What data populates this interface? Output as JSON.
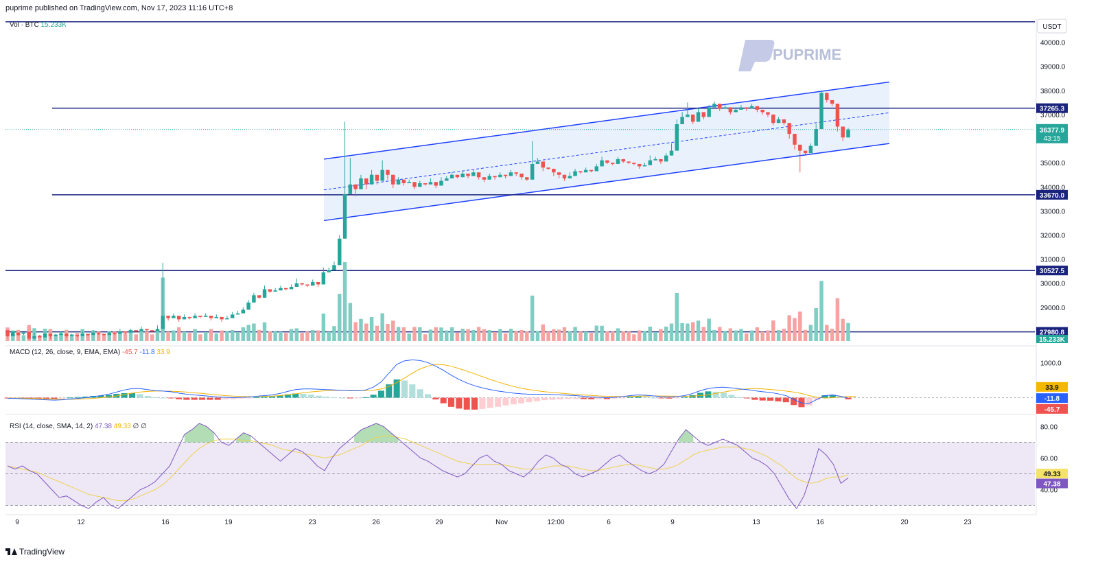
{
  "header": {
    "published": "puprime published on TradingView.com, Nov 17, 2023 11:16 UTC+8"
  },
  "footer": {
    "brand": "TradingView"
  },
  "watermark": {
    "text": "PUPRIME",
    "color": "#9aa6d6"
  },
  "colors": {
    "up": "#26a69a",
    "down": "#ef5350",
    "level": "#1a237e",
    "channel": "#1e40ff",
    "channel_fill": "#e3eefc",
    "volume_up": "#7fcdc3",
    "volume_down": "#f4a3a1",
    "macd": "#2962ff",
    "signal": "#f2b300",
    "rsi": "#7e57c2",
    "rsi_ma": "#f0d34d",
    "rsi_band": "#ede7f6"
  },
  "chart_data": {
    "type": "candlestick",
    "symbol": "BTC",
    "currency": "USDT",
    "price_axis": {
      "ticks": [
        "40000.0",
        "39000.0",
        "38000.0",
        "37000.0",
        "35000.0",
        "34000.0",
        "33000.0",
        "32000.0",
        "31000.0",
        "30000.0",
        "29000.0",
        "28000.0"
      ],
      "ylim": [
        27600,
        40900
      ]
    },
    "time_axis": {
      "labels": [
        "9",
        "12",
        "16",
        "19",
        "23",
        "26",
        "29",
        "Nov",
        "12:00",
        "6",
        "9",
        "13",
        "16",
        "20",
        "23"
      ]
    },
    "levels": [
      {
        "price": 40850,
        "label": ""
      },
      {
        "price": 37265.3,
        "label": "37265.3"
      },
      {
        "price": 33670.0,
        "label": "33670.0"
      },
      {
        "price": 30527.5,
        "label": "30527.5"
      },
      {
        "price": 27980.8,
        "label": "27980.8"
      }
    ],
    "last_price": {
      "value": "36377.9",
      "countdown": "43:15"
    },
    "channel": {
      "upper": [
        [
          35150,
          38350
        ]
      ],
      "lower": [
        [
          32600,
          35800
        ]
      ]
    },
    "candles_start": 27950,
    "candles": [
      [
        28050,
        27800,
        27750
      ],
      [
        27800,
        28000,
        27900
      ],
      [
        27950,
        27850,
        27800
      ],
      [
        27900,
        27950,
        27850
      ],
      [
        27980,
        27700,
        27650
      ],
      [
        27700,
        27800,
        27950
      ],
      [
        27800,
        27750,
        27850
      ],
      [
        27750,
        27900,
        28000
      ],
      [
        27900,
        27800,
        27700
      ],
      [
        27800,
        27850,
        27900
      ],
      [
        27850,
        27900,
        28000
      ],
      [
        27900,
        27800,
        27750
      ],
      [
        27800,
        27850,
        27900
      ],
      [
        27850,
        27800,
        27750
      ],
      [
        27800,
        27900,
        28000
      ],
      [
        27900,
        27850,
        27800
      ],
      [
        27850,
        27950,
        28050
      ],
      [
        27950,
        27900,
        27850
      ],
      [
        27900,
        27850,
        27800
      ],
      [
        27850,
        27950,
        28000
      ],
      [
        27950,
        27900,
        27850
      ],
      [
        27900,
        28000,
        28100
      ],
      [
        28000,
        27950,
        27900
      ],
      [
        27950,
        28050,
        28100
      ],
      [
        28050,
        28000,
        27950
      ],
      [
        28000,
        28100,
        28200
      ],
      [
        28100,
        28050,
        28000
      ],
      [
        28050,
        28000,
        27950
      ],
      [
        28000,
        28100,
        28250
      ],
      [
        28100,
        28650,
        30850
      ],
      [
        28650,
        28550,
        28450
      ],
      [
        28550,
        28650,
        28750
      ],
      [
        28650,
        28500,
        28400
      ],
      [
        28500,
        28600,
        28700
      ],
      [
        28600,
        28550,
        28500
      ],
      [
        28550,
        28650,
        28750
      ],
      [
        28650,
        28600,
        28550
      ],
      [
        28600,
        28650,
        28750
      ],
      [
        28650,
        28550,
        28450
      ],
      [
        28550,
        28600,
        28700
      ],
      [
        28600,
        28500,
        28400
      ],
      [
        28500,
        28550,
        28650
      ],
      [
        28550,
        28700,
        28800
      ],
      [
        28700,
        28750,
        28850
      ],
      [
        28750,
        28900,
        29000
      ],
      [
        28900,
        29200,
        29300
      ],
      [
        29200,
        29500,
        29600
      ],
      [
        29500,
        29400,
        29350
      ],
      [
        29400,
        29750,
        29900
      ],
      [
        29750,
        29650,
        29600
      ],
      [
        29650,
        29700,
        29800
      ],
      [
        29700,
        29800,
        29900
      ],
      [
        29800,
        29750,
        29700
      ],
      [
        29750,
        29850,
        29950
      ],
      [
        29850,
        30000,
        30200
      ],
      [
        30000,
        29950,
        29900
      ],
      [
        29950,
        29900,
        29850
      ],
      [
        29900,
        30050,
        30150
      ],
      [
        30050,
        29950,
        29850
      ],
      [
        29950,
        30450,
        30650
      ],
      [
        30450,
        30550,
        30650
      ],
      [
        30550,
        30750,
        30900
      ],
      [
        30750,
        31850,
        32000
      ],
      [
        31850,
        33700,
        36700
      ],
      [
        33700,
        34100,
        35200
      ],
      [
        34100,
        33900,
        33600
      ],
      [
        33900,
        34350,
        34500
      ],
      [
        34350,
        34100,
        33900
      ],
      [
        34100,
        34500,
        34700
      ],
      [
        34500,
        34250,
        34100
      ],
      [
        34250,
        34700,
        35100
      ],
      [
        34700,
        34500,
        34300
      ],
      [
        34500,
        34100,
        33950
      ],
      [
        34100,
        34300,
        34400
      ],
      [
        34300,
        34150,
        34050
      ],
      [
        34150,
        34200,
        34300
      ],
      [
        34200,
        34000,
        33900
      ],
      [
        34000,
        34150,
        34250
      ],
      [
        34150,
        34100,
        34050
      ],
      [
        34100,
        34200,
        34350
      ],
      [
        34200,
        34050,
        33950
      ],
      [
        34050,
        34250,
        34400
      ],
      [
        34250,
        34350,
        34450
      ],
      [
        34350,
        34500,
        34600
      ],
      [
        34500,
        34400,
        34350
      ],
      [
        34400,
        34550,
        34650
      ],
      [
        34550,
        34450,
        34350
      ],
      [
        34450,
        34600,
        34700
      ],
      [
        34600,
        34400,
        34300
      ],
      [
        34400,
        34300,
        34200
      ],
      [
        34300,
        34450,
        34550
      ],
      [
        34450,
        34400,
        34300
      ],
      [
        34400,
        34500,
        34600
      ],
      [
        34500,
        34450,
        34350
      ],
      [
        34450,
        34600,
        34700
      ],
      [
        34600,
        34550,
        34450
      ],
      [
        34550,
        34400,
        34300
      ],
      [
        34400,
        34300,
        34250
      ],
      [
        34300,
        34950,
        35900
      ],
      [
        34950,
        35050,
        35200
      ],
      [
        35050,
        34800,
        34650
      ],
      [
        34800,
        34750,
        34700
      ],
      [
        34750,
        34600,
        34450
      ],
      [
        34600,
        34500,
        34350
      ],
      [
        34500,
        34350,
        34250
      ],
      [
        34350,
        34450,
        34600
      ],
      [
        34450,
        34650,
        34750
      ],
      [
        34650,
        34600,
        34550
      ],
      [
        34600,
        34700,
        34800
      ],
      [
        34700,
        34650,
        34600
      ],
      [
        34650,
        34850,
        34950
      ],
      [
        34850,
        35100,
        35250
      ],
      [
        35100,
        35000,
        34950
      ],
      [
        35000,
        34950,
        34900
      ],
      [
        34950,
        35150,
        35250
      ],
      [
        35150,
        35050,
        35000
      ],
      [
        35050,
        35000,
        34950
      ],
      [
        35000,
        34950,
        34900
      ],
      [
        34950,
        34850,
        34750
      ],
      [
        34850,
        34900,
        35000
      ],
      [
        34900,
        35100,
        35300
      ],
      [
        35100,
        35150,
        35250
      ],
      [
        35150,
        35050,
        34950
      ],
      [
        35050,
        35300,
        35400
      ],
      [
        35300,
        35500,
        35800
      ],
      [
        35500,
        36600,
        36800
      ],
      [
        36600,
        36900,
        37100
      ],
      [
        36900,
        37000,
        37500
      ],
      [
        37000,
        36700,
        36600
      ],
      [
        36700,
        37100,
        37250
      ],
      [
        37100,
        36900,
        36800
      ],
      [
        36900,
        37300,
        37400
      ],
      [
        37300,
        37450,
        37550
      ],
      [
        37450,
        37250,
        37150
      ],
      [
        37250,
        37300,
        37400
      ],
      [
        37300,
        37100,
        37000
      ],
      [
        37100,
        37200,
        37300
      ],
      [
        37200,
        37300,
        37400
      ],
      [
        37300,
        37250,
        37150
      ],
      [
        37250,
        37350,
        37450
      ],
      [
        37350,
        37200,
        37100
      ],
      [
        37200,
        37100,
        37000
      ],
      [
        37100,
        37000,
        36900
      ],
      [
        37000,
        36650,
        36550
      ],
      [
        36650,
        36800,
        36900
      ],
      [
        36800,
        36650,
        36550
      ],
      [
        36650,
        36200,
        36000
      ],
      [
        36200,
        35750,
        35550
      ],
      [
        35750,
        35500,
        34600
      ],
      [
        35500,
        35400,
        35350
      ],
      [
        35400,
        35700,
        35800
      ],
      [
        35700,
        36400,
        36600
      ],
      [
        36400,
        37900,
        38000
      ],
      [
        37900,
        37600,
        37500
      ],
      [
        37600,
        37450,
        37350
      ],
      [
        37450,
        36500,
        36300
      ],
      [
        36500,
        36050,
        35900
      ],
      [
        36050,
        36377.9,
        36450
      ]
    ],
    "volume": {
      "label": "Vol · BTC",
      "value": "15.233K"
    },
    "macd": {
      "label": "MACD (12, 26, close, 9, EMA, EMA)",
      "histogram": "-45.7",
      "macd": "-11.8",
      "signal": "33.9",
      "ticks": [
        "1000.0"
      ],
      "ylim": [
        -400,
        1400
      ],
      "macd_line": [
        -20,
        -20,
        -30,
        -40,
        -50,
        -60,
        -70,
        -60,
        -40,
        -20,
        0,
        30,
        60,
        100,
        160,
        220,
        260,
        260,
        230,
        200,
        190,
        170,
        130,
        100,
        80,
        60,
        40,
        20,
        10,
        0,
        10,
        20,
        40,
        60,
        80,
        120,
        180,
        230,
        250,
        250,
        240,
        230,
        220,
        210,
        200,
        200,
        220,
        300,
        450,
        700,
        950,
        1050,
        1080,
        1060,
        1000,
        900,
        780,
        640,
        520,
        420,
        340,
        280,
        230,
        190,
        160,
        130,
        110,
        100,
        100,
        100,
        90,
        80,
        70,
        60,
        40,
        20,
        10,
        0,
        10,
        30,
        60,
        80,
        70,
        50,
        30,
        20,
        30,
        60,
        120,
        200,
        260,
        290,
        300,
        280,
        250,
        230,
        200,
        170,
        150,
        110,
        60,
        -50,
        -150,
        -160,
        -50,
        60,
        80,
        40,
        -11.8
      ],
      "signal_line": [
        -10,
        -12,
        -15,
        -20,
        -25,
        -32,
        -40,
        -45,
        -45,
        -40,
        -30,
        -20,
        0,
        20,
        50,
        90,
        130,
        160,
        180,
        190,
        190,
        185,
        175,
        160,
        140,
        120,
        100,
        80,
        60,
        45,
        35,
        30,
        30,
        35,
        45,
        60,
        85,
        110,
        140,
        165,
        185,
        200,
        210,
        210,
        210,
        205,
        205,
        215,
        250,
        320,
        430,
        560,
        700,
        820,
        900,
        950,
        940,
        900,
        830,
        760,
        680,
        600,
        520,
        450,
        380,
        320,
        270,
        230,
        200,
        170,
        150,
        130,
        110,
        95,
        80,
        65,
        50,
        40,
        35,
        32,
        35,
        42,
        48,
        50,
        48,
        45,
        42,
        40,
        45,
        60,
        80,
        120,
        160,
        200,
        230,
        250,
        260,
        250,
        235,
        215,
        190,
        160,
        120,
        60,
        10,
        -10,
        0,
        20,
        35,
        33.9
      ]
    },
    "rsi": {
      "label": "RSI (14, close, SMA, 14, 2)",
      "value": "47.38",
      "ma": "49.33",
      "extra": "∅ ∅",
      "ticks": [
        "80.00",
        "60.00",
        "40.00"
      ],
      "ylim": [
        25,
        85
      ],
      "upper": 70,
      "lower": 30,
      "rsi_line": [
        55,
        53,
        55,
        52,
        50,
        45,
        40,
        35,
        36,
        33,
        30,
        28,
        32,
        35,
        30,
        28,
        32,
        36,
        40,
        42,
        45,
        50,
        55,
        65,
        75,
        78,
        82,
        80,
        76,
        70,
        68,
        72,
        76,
        74,
        70,
        66,
        62,
        58,
        62,
        66,
        64,
        60,
        55,
        52,
        60,
        66,
        70,
        74,
        78,
        80,
        82,
        80,
        76,
        72,
        68,
        64,
        60,
        58,
        55,
        52,
        50,
        48,
        50,
        55,
        60,
        62,
        58,
        56,
        52,
        50,
        48,
        52,
        58,
        62,
        60,
        56,
        54,
        50,
        48,
        50,
        52,
        56,
        60,
        62,
        58,
        55,
        52,
        50,
        52,
        56,
        64,
        72,
        78,
        74,
        70,
        68,
        70,
        72,
        70,
        68,
        64,
        60,
        58,
        55,
        50,
        42,
        34,
        28,
        36,
        50,
        66,
        62,
        56,
        44,
        47.38
      ],
      "ma_line": [
        55,
        54,
        53,
        52,
        51,
        49,
        47,
        45,
        43,
        41,
        39,
        37,
        36,
        35,
        34,
        33,
        33,
        34,
        36,
        38,
        40,
        43,
        47,
        52,
        57,
        62,
        66,
        69,
        71,
        72,
        72,
        72,
        71,
        71,
        70,
        69,
        68,
        66,
        65,
        64,
        63,
        62,
        61,
        60,
        61,
        62,
        64,
        66,
        68,
        71,
        73,
        74,
        74,
        73,
        72,
        70,
        68,
        66,
        64,
        62,
        60,
        58,
        57,
        56,
        56,
        56,
        56,
        56,
        55,
        54,
        53,
        53,
        53,
        54,
        55,
        55,
        55,
        54,
        53,
        52,
        52,
        53,
        54,
        55,
        56,
        56,
        55,
        54,
        53,
        53,
        54,
        56,
        59,
        62,
        64,
        65,
        66,
        67,
        67,
        67,
        66,
        65,
        63,
        61,
        58,
        55,
        51,
        47,
        45,
        44,
        45,
        47,
        48,
        48,
        49.33
      ]
    }
  }
}
